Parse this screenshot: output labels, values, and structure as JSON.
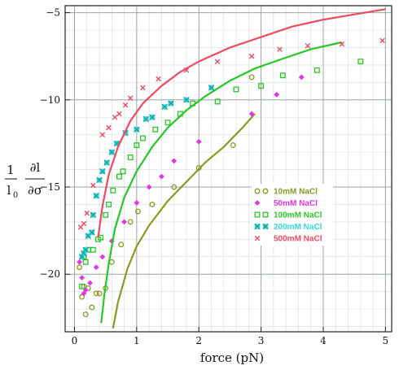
{
  "chart_data": {
    "type": "scatter",
    "xlabel": "force (pN)",
    "ylabel_parts": {
      "num": "1",
      "den": "l",
      "den_sub": "0",
      "frac_num": "∂l",
      "frac_den": "∂σ"
    },
    "xlim": [
      -0.15,
      5.1
    ],
    "ylim": [
      -23.3,
      -4.6
    ],
    "xticks": [
      0,
      1,
      2,
      3,
      4,
      5
    ],
    "xtick_labels": [
      "0",
      "1",
      "2",
      "3",
      "4",
      "5"
    ],
    "yticks": [
      -20,
      -15,
      -10,
      -5
    ],
    "ytick_labels": [
      "−20",
      "−15",
      "−10",
      "−5"
    ],
    "grid": true,
    "legend_position": "center-right",
    "series": [
      {
        "name": "10mM NaCl",
        "color": "#8b9a1e",
        "marker": "circle",
        "points": [
          [
            0.08,
            -19.6
          ],
          [
            0.12,
            -21.3
          ],
          [
            0.15,
            -20.7
          ],
          [
            0.18,
            -22.3
          ],
          [
            0.22,
            -20.8
          ],
          [
            0.28,
            -21.9
          ],
          [
            0.35,
            -21.1
          ],
          [
            0.4,
            -21.1
          ],
          [
            0.5,
            -20.8
          ],
          [
            0.6,
            -19.3
          ],
          [
            0.75,
            -18.3
          ],
          [
            0.9,
            -17.0
          ],
          [
            1.02,
            -16.4
          ],
          [
            1.25,
            -16.0
          ],
          [
            1.6,
            -15.0
          ],
          [
            2.0,
            -13.9
          ],
          [
            2.55,
            -12.6
          ],
          [
            2.85,
            -8.7
          ]
        ],
        "fit": [
          [
            0.62,
            -23.1
          ],
          [
            0.7,
            -21.6
          ],
          [
            0.85,
            -19.7
          ],
          [
            1.0,
            -18.4
          ],
          [
            1.2,
            -17.2
          ],
          [
            1.5,
            -15.8
          ],
          [
            1.8,
            -14.7
          ],
          [
            2.1,
            -13.6
          ],
          [
            2.4,
            -12.7
          ],
          [
            2.7,
            -11.6
          ],
          [
            2.9,
            -10.8
          ]
        ]
      },
      {
        "name": "50mM NaCl",
        "color": "#e236e6",
        "marker": "diamond",
        "points": [
          [
            0.08,
            -19.3
          ],
          [
            0.12,
            -20.2
          ],
          [
            0.15,
            -21.1
          ],
          [
            0.18,
            -20.9
          ],
          [
            0.25,
            -20.5
          ],
          [
            0.35,
            -19.6
          ],
          [
            0.45,
            -19.0
          ],
          [
            0.6,
            -18.1
          ],
          [
            0.8,
            -17.0
          ],
          [
            1.0,
            -15.9
          ],
          [
            1.2,
            -15.0
          ],
          [
            1.4,
            -14.4
          ],
          [
            1.6,
            -13.5
          ],
          [
            2.0,
            -12.4
          ],
          [
            2.85,
            -10.8
          ],
          [
            3.25,
            -9.7
          ],
          [
            3.65,
            -8.7
          ]
        ],
        "fit": []
      },
      {
        "name": "100mM NaCl",
        "color": "#27c826",
        "marker": "square",
        "points": [
          [
            0.12,
            -20.7
          ],
          [
            0.15,
            -19.0
          ],
          [
            0.18,
            -19.3
          ],
          [
            0.22,
            -18.6
          ],
          [
            0.3,
            -18.6
          ],
          [
            0.38,
            -18.0
          ],
          [
            0.42,
            -17.9
          ],
          [
            0.5,
            -16.6
          ],
          [
            0.55,
            -16.0
          ],
          [
            0.62,
            -15.2
          ],
          [
            0.72,
            -14.4
          ],
          [
            0.78,
            -14.1
          ],
          [
            0.9,
            -13.3
          ],
          [
            1.0,
            -12.6
          ],
          [
            1.1,
            -12.2
          ],
          [
            1.3,
            -11.7
          ],
          [
            1.5,
            -11.3
          ],
          [
            1.7,
            -10.8
          ],
          [
            1.9,
            -10.2
          ],
          [
            2.3,
            -10.1
          ],
          [
            2.6,
            -9.4
          ],
          [
            3.0,
            -9.2
          ],
          [
            3.35,
            -8.6
          ],
          [
            3.9,
            -8.3
          ],
          [
            4.6,
            -7.8
          ]
        ],
        "fit": [
          [
            0.43,
            -22.8
          ],
          [
            0.48,
            -21.2
          ],
          [
            0.55,
            -19.4
          ],
          [
            0.65,
            -17.4
          ],
          [
            0.8,
            -15.6
          ],
          [
            1.0,
            -14.1
          ],
          [
            1.25,
            -12.7
          ],
          [
            1.5,
            -11.6
          ],
          [
            1.8,
            -10.6
          ],
          [
            2.1,
            -9.8
          ],
          [
            2.5,
            -8.9
          ],
          [
            2.9,
            -8.2
          ],
          [
            3.3,
            -7.7
          ],
          [
            3.8,
            -7.1
          ],
          [
            4.3,
            -6.7
          ]
        ]
      },
      {
        "name": "200mM NaCl",
        "color": "#33dbd9",
        "marker": "star",
        "points": [
          [
            0.12,
            -19.0
          ],
          [
            0.15,
            -18.8
          ],
          [
            0.18,
            -18.6
          ],
          [
            0.22,
            -17.8
          ],
          [
            0.28,
            -17.6
          ],
          [
            0.3,
            -16.6
          ],
          [
            0.35,
            -15.5
          ],
          [
            0.4,
            -14.6
          ],
          [
            0.45,
            -14.1
          ],
          [
            0.52,
            -13.6
          ],
          [
            0.6,
            -13.0
          ],
          [
            0.68,
            -12.5
          ],
          [
            0.82,
            -11.9
          ],
          [
            1.0,
            -11.7
          ],
          [
            1.15,
            -11.1
          ],
          [
            1.25,
            -11.0
          ],
          [
            1.45,
            -10.4
          ],
          [
            1.55,
            -10.2
          ],
          [
            1.8,
            -10.0
          ],
          [
            2.2,
            -9.3
          ]
        ],
        "fit": []
      },
      {
        "name": "500mM NaCl",
        "color": "#ee4a5f",
        "marker": "x",
        "points": [
          [
            0.1,
            -17.3
          ],
          [
            0.15,
            -17.1
          ],
          [
            0.2,
            -16.5
          ],
          [
            0.3,
            -14.9
          ],
          [
            0.45,
            -12.0
          ],
          [
            0.55,
            -11.6
          ],
          [
            0.65,
            -11.0
          ],
          [
            0.72,
            -10.8
          ],
          [
            0.82,
            -10.3
          ],
          [
            0.9,
            -9.9
          ],
          [
            1.1,
            -9.3
          ],
          [
            1.35,
            -8.8
          ],
          [
            1.8,
            -8.3
          ],
          [
            2.3,
            -7.8
          ],
          [
            2.85,
            -7.5
          ],
          [
            3.3,
            -7.1
          ],
          [
            3.75,
            -6.9
          ],
          [
            4.3,
            -6.8
          ],
          [
            4.95,
            -6.6
          ]
        ],
        "fit": [
          [
            0.38,
            -17.9
          ],
          [
            0.45,
            -16.1
          ],
          [
            0.55,
            -14.3
          ],
          [
            0.7,
            -12.7
          ],
          [
            0.9,
            -11.2
          ],
          [
            1.1,
            -10.2
          ],
          [
            1.4,
            -9.2
          ],
          [
            1.7,
            -8.4
          ],
          [
            2.0,
            -7.8
          ],
          [
            2.5,
            -7.0
          ],
          [
            3.0,
            -6.4
          ],
          [
            3.5,
            -5.8
          ],
          [
            4.0,
            -5.4
          ],
          [
            4.5,
            -5.1
          ],
          [
            5.0,
            -4.8
          ]
        ]
      }
    ]
  }
}
